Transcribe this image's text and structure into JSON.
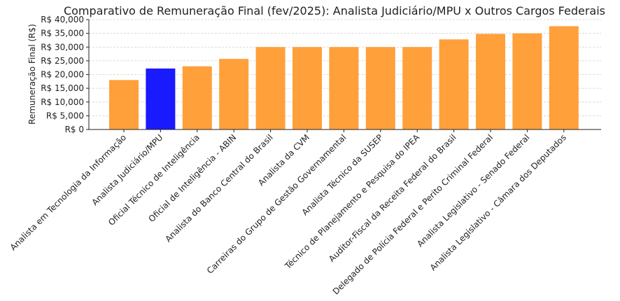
{
  "chart_data": {
    "type": "bar",
    "title": "Comparativo de Remuneração Final (fev/2025): Analista Judiciário/MPU x Outros Cargos Federais",
    "xlabel": "",
    "ylabel": "Remuneração Final (R$)",
    "ylim": [
      0,
      40000
    ],
    "yticks": [
      0,
      5000,
      10000,
      15000,
      20000,
      25000,
      30000,
      35000,
      40000
    ],
    "ytick_labels": [
      "R$ 0",
      "R$ 5,000",
      "R$ 10,000",
      "R$ 15,000",
      "R$ 20,000",
      "R$ 25,000",
      "R$ 30,000",
      "R$ 35,000",
      "R$ 40,000"
    ],
    "grid": true,
    "categories": [
      "Analista em Tecnologia da Informação",
      "Analista Judiciário/MPU",
      "Oficial Técnico de Inteligência",
      "Oficial de Inteligência - ABIN",
      "Analista do Banco Central do Brasil",
      "Analista da CVM",
      "Carreiras do Grupo de Gestão Governamental",
      "Analista Técnico da SUSEP",
      "Técnico de Planejamento e Pesquisa do IPEA",
      "Auditor-Fiscal da Receita Federal do Brasil",
      "Delegado de Polícia Federal e Perito Criminal Federal",
      "Analista Legislativo - Senado Federal",
      "Analista Legislativo - Câmara dos Deputados"
    ],
    "values": [
      18000,
      22200,
      23000,
      25700,
      30000,
      30000,
      30000,
      30000,
      30000,
      32800,
      34800,
      35000,
      37600
    ],
    "colors": [
      "#ffa03a",
      "#1a1aff",
      "#ffa03a",
      "#ffa03a",
      "#ffa03a",
      "#ffa03a",
      "#ffa03a",
      "#ffa03a",
      "#ffa03a",
      "#ffa03a",
      "#ffa03a",
      "#ffa03a",
      "#ffa03a"
    ],
    "default_color": "#ffa03a",
    "highlight_color": "#1a1aff"
  }
}
